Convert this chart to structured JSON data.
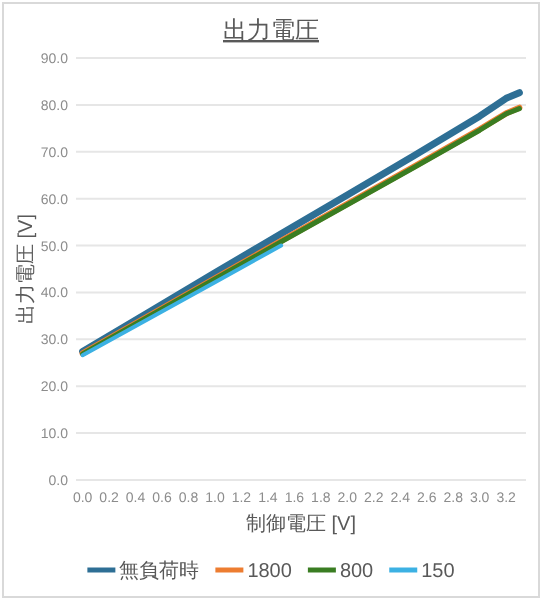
{
  "chart_data": {
    "type": "line",
    "title": "出力電圧",
    "xlabel": "制御電圧 [V]",
    "ylabel": "出力電圧 [V]",
    "xlim": [
      -0.05,
      3.35
    ],
    "xticks": [
      {
        "value": 0,
        "label": "0.0"
      },
      {
        "value": 0.2,
        "label": "0.2"
      },
      {
        "value": 0.4,
        "label": "0.4"
      },
      {
        "value": 0.6,
        "label": "0.6"
      },
      {
        "value": 0.8,
        "label": "0.8"
      },
      {
        "value": 1,
        "label": "1.0"
      },
      {
        "value": 1.2,
        "label": "1.2"
      },
      {
        "value": 1.4,
        "label": "1.4"
      },
      {
        "value": 1.6,
        "label": "1.6"
      },
      {
        "value": 1.8,
        "label": "1.8"
      },
      {
        "value": 2,
        "label": "2.0"
      },
      {
        "value": 2.2,
        "label": "2.2"
      },
      {
        "value": 2.4,
        "label": "2.4"
      },
      {
        "value": 2.6,
        "label": "2.6"
      },
      {
        "value": 2.8,
        "label": "2.8"
      },
      {
        "value": 3,
        "label": "3.0"
      },
      {
        "value": 3.2,
        "label": "3.2"
      }
    ],
    "ylim": [
      0,
      90
    ],
    "yticks": [
      {
        "value": 0,
        "label": "0.0"
      },
      {
        "value": 10,
        "label": "10.0"
      },
      {
        "value": 20,
        "label": "20.0"
      },
      {
        "value": 30,
        "label": "30.0"
      },
      {
        "value": 40,
        "label": "40.0"
      },
      {
        "value": 50,
        "label": "50.0"
      },
      {
        "value": 60,
        "label": "60.0"
      },
      {
        "value": 70,
        "label": "70.0"
      },
      {
        "value": 80,
        "label": "80.0"
      },
      {
        "value": 90,
        "label": "90.0"
      }
    ],
    "grid": "y",
    "legend": "bottom",
    "series": [
      {
        "name": "無負荷時",
        "color": "#2e6f95",
        "x": [
          0,
          0.5,
          1.0,
          1.5,
          2.0,
          2.5,
          3.0,
          3.2,
          3.3
        ],
        "values": [
          27.4,
          35.8,
          44.2,
          52.5,
          60.8,
          69.1,
          77.6,
          81.4,
          82.6
        ]
      },
      {
        "name": "1800",
        "color": "#ed7d31",
        "x": [
          0,
          0.5,
          1.0,
          1.5,
          2.0,
          2.5,
          3.0,
          3.2,
          3.3
        ],
        "values": [
          27.0,
          35.0,
          43.0,
          51.0,
          58.9,
          66.8,
          74.8,
          78.2,
          79.4
        ]
      },
      {
        "name": "800",
        "color": "#3a7d22",
        "x": [
          0,
          0.5,
          1.0,
          1.5,
          2.0,
          2.5,
          3.0,
          3.2,
          3.3
        ],
        "values": [
          26.9,
          34.9,
          42.9,
          50.8,
          58.7,
          66.6,
          74.6,
          78.1,
          79.2
        ]
      },
      {
        "name": "150",
        "color": "#3cb1e3",
        "x": [
          0,
          0.5,
          1.0,
          1.5
        ],
        "values": [
          26.6,
          34.4,
          42.2,
          50.0
        ]
      }
    ]
  }
}
